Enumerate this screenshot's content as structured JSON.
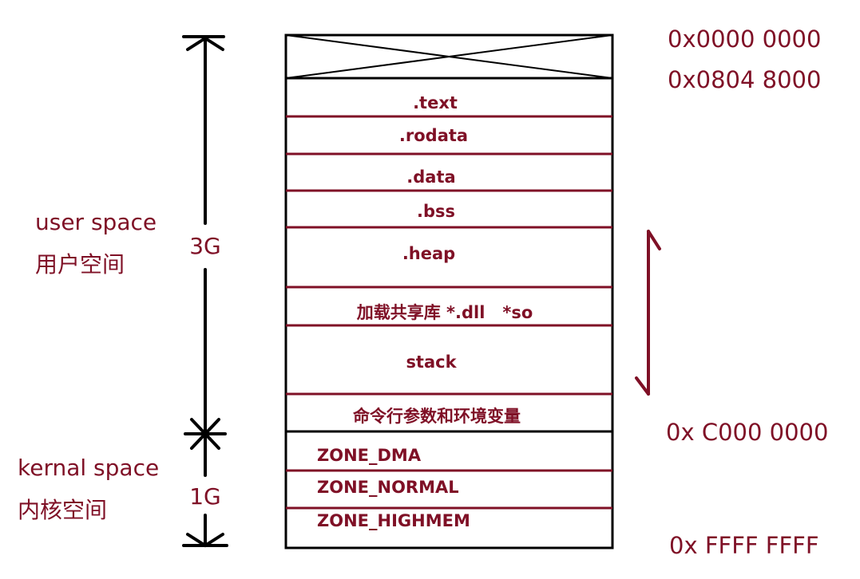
{
  "address_labels": {
    "top": "0x0000 0000",
    "text_start": "0x0804 8000",
    "kernel_start": "0x C000 0000",
    "bottom": "0x FFFF FFFF"
  },
  "user_space": {
    "title": "user space",
    "title_cn": "用户空间",
    "size": "3G"
  },
  "kernel_space": {
    "title": "kernal space",
    "title_cn": "内核空间",
    "size": "1G"
  },
  "user_segments": [
    ".text",
    ".rodata",
    ".data",
    ".bss",
    ".heap",
    "加载共享库 *.dll   *so",
    "stack",
    "命令行参数和环境变量"
  ],
  "kernel_zones": [
    "ZONE_DMA",
    "ZONE_NORMAL",
    "ZONE_HIGHMEM"
  ],
  "colors": {
    "label": "#7f1026",
    "line": "#7f1026",
    "outline": "#000000"
  },
  "icons": {
    "reserved_region": "cross-box-icon",
    "growth": "double-arrow-icon"
  }
}
